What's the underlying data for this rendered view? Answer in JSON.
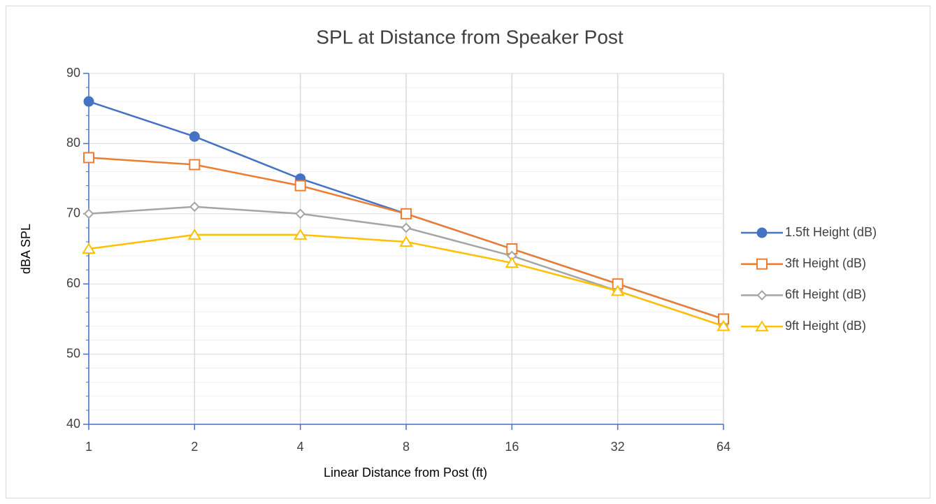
{
  "chart_data": {
    "type": "line",
    "title": "SPL at Distance from Speaker Post",
    "x_label": "Linear Distance from Post (ft)",
    "y_label": "dBA SPL",
    "x": [
      1,
      2,
      4,
      8,
      16,
      32,
      64
    ],
    "xlim": [
      1,
      64
    ],
    "xticks": [
      1,
      2,
      4,
      8,
      16,
      32,
      64
    ],
    "xscale": "log2",
    "ylim": [
      40,
      90
    ],
    "yticks": [
      40,
      50,
      60,
      70,
      80,
      90
    ],
    "yminor_ticks": [
      42,
      44,
      46,
      48,
      52,
      54,
      56,
      58,
      62,
      64,
      66,
      68,
      72,
      74,
      76,
      78,
      82,
      84,
      86,
      88
    ],
    "grid": true,
    "legend": "right",
    "series": [
      {
        "name": "1.5ft Height (dB)",
        "color": "#4472c4",
        "marker": "circle",
        "values": [
          86,
          81,
          75,
          70,
          65,
          60,
          55
        ]
      },
      {
        "name": "3ft Height (dB)",
        "color": "#ed7d31",
        "marker": "square",
        "values": [
          78,
          77,
          74,
          70,
          65,
          60,
          55
        ]
      },
      {
        "name": "6ft Height (dB)",
        "color": "#a5a5a5",
        "marker": "diamond",
        "values": [
          70,
          71,
          70,
          68,
          64,
          59,
          54
        ]
      },
      {
        "name": "9ft Height (dB)",
        "color": "#ffc000",
        "marker": "triangle",
        "values": [
          65,
          67,
          67,
          66,
          63,
          59,
          54
        ]
      }
    ]
  }
}
